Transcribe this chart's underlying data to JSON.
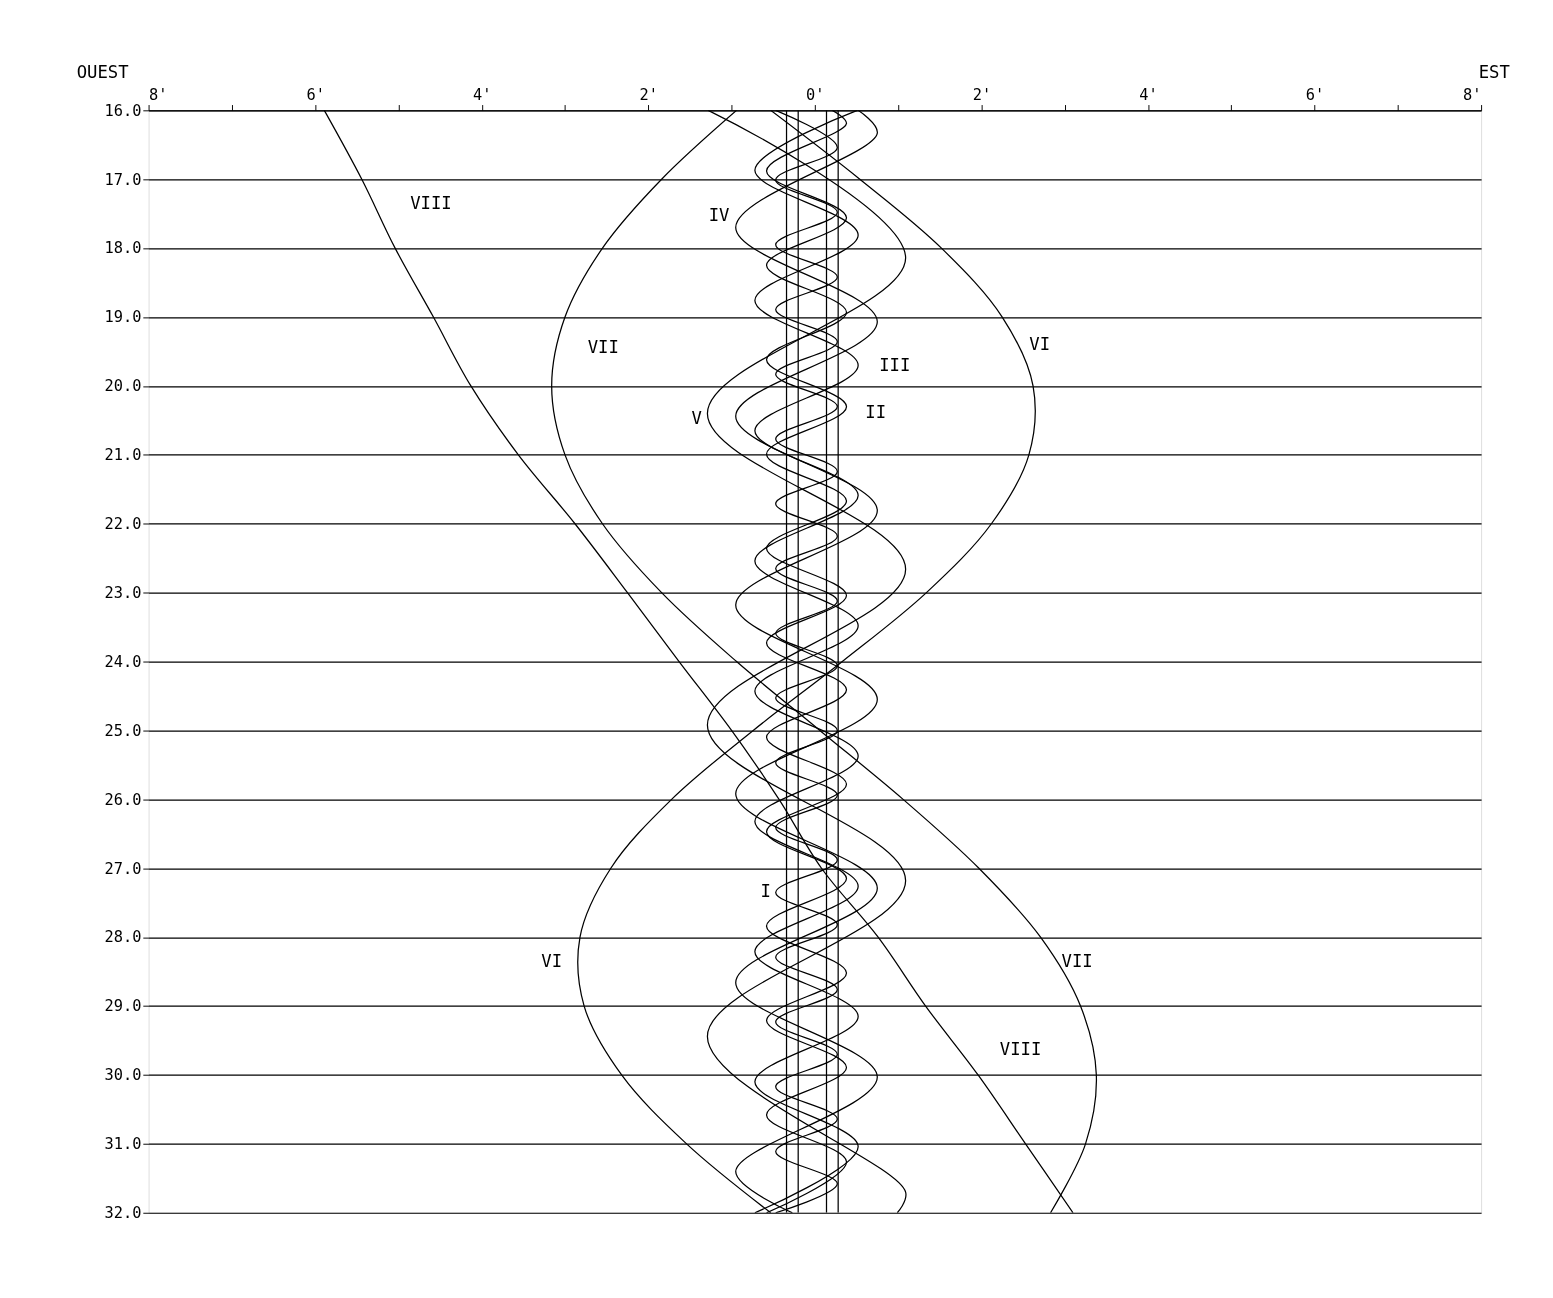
{
  "chart_data": {
    "type": "line",
    "annotations": [
      "OUEST",
      "EST",
      {
        "text": "VIII",
        "x": -5.44,
        "y": 17
      },
      {
        "text": "IV",
        "x": -0.95,
        "y": 17.7
      },
      {
        "text": "VII",
        "x": -3.0,
        "y": 19
      },
      {
        "text": "VI",
        "x": 2.62,
        "y": 20
      },
      {
        "text": "III",
        "x": 0.52,
        "y": 19.7
      },
      {
        "text": "II",
        "x": 0.38,
        "y": 20.3
      },
      {
        "text": "V",
        "x": -1.29,
        "y": 20.4
      },
      {
        "text": "I",
        "x": -0.47,
        "y": 27.35
      },
      {
        "text": "VI",
        "x": -2.82,
        "y": 28
      },
      {
        "text": "VII",
        "x": 2.71,
        "y": 28
      },
      {
        "text": "VIII",
        "x": 1.96,
        "y": 30
      }
    ],
    "xlim": [
      -8,
      8
    ],
    "xticks": [
      {
        "value": -8,
        "label": "8'"
      },
      {
        "value": -7,
        "label": null
      },
      {
        "value": -6,
        "label": "6'"
      },
      {
        "value": -5,
        "label": null
      },
      {
        "value": -4,
        "label": "4'"
      },
      {
        "value": -3,
        "label": null
      },
      {
        "value": -2,
        "label": "2'"
      },
      {
        "value": -1,
        "label": null
      },
      {
        "value": 0,
        "label": "0'"
      },
      {
        "value": 1,
        "label": null
      },
      {
        "value": 2,
        "label": "2'"
      },
      {
        "value": 3,
        "label": null
      },
      {
        "value": 4,
        "label": "4'"
      },
      {
        "value": 5,
        "label": null
      },
      {
        "value": 6,
        "label": "6'"
      },
      {
        "value": 7,
        "label": null
      },
      {
        "value": 8,
        "label": "8'"
      }
    ],
    "ylim": [
      32,
      16
    ],
    "yticks": [
      {
        "value": 16,
        "label": "16.0"
      },
      {
        "value": 17,
        "label": "17.0"
      },
      {
        "value": 18,
        "label": "18.0"
      },
      {
        "value": 19,
        "label": "19.0"
      },
      {
        "value": 20,
        "label": "20.0"
      },
      {
        "value": 21,
        "label": "21.0"
      },
      {
        "value": 22,
        "label": "22.0"
      },
      {
        "value": 23,
        "label": "23.0"
      },
      {
        "value": 24,
        "label": "24.0"
      },
      {
        "value": 25,
        "label": "25.0"
      },
      {
        "value": 26,
        "label": "26.0"
      },
      {
        "value": 27,
        "label": "27.0"
      },
      {
        "value": 28,
        "label": "28.0"
      },
      {
        "value": 29,
        "label": "29.0"
      },
      {
        "value": 30,
        "label": "30.0"
      },
      {
        "value": 31,
        "label": "31.0"
      },
      {
        "value": 32,
        "label": "32.0"
      }
    ],
    "grid": "y",
    "legend": false,
    "marker": "none",
    "line_style": "solid",
    "series": [
      {
        "color": "#000000",
        "x": [
          -0.47,
          0.27,
          -0.47,
          0.27,
          -0.47,
          0.27,
          -0.47,
          0.27,
          -0.47,
          0.27,
          -0.47,
          0.27,
          -0.47,
          0.27,
          -0.47,
          0.27,
          -0.47,
          0.27,
          -0.47,
          0.27,
          -0.47,
          0.27,
          -0.47,
          0.27,
          -0.47,
          0.27,
          -0.47,
          0.27,
          -0.47,
          0.27,
          -0.47,
          0.27,
          -0.47,
          0.27,
          -0.47
        ],
        "values": [
          16.0,
          16.54,
          17.01,
          17.48,
          17.95,
          18.42,
          18.89,
          19.36,
          19.83,
          20.3,
          20.77,
          21.24,
          21.71,
          22.18,
          22.65,
          23.12,
          23.59,
          24.06,
          24.53,
          25.0,
          25.47,
          25.94,
          26.41,
          26.88,
          27.35,
          27.82,
          28.29,
          28.76,
          29.23,
          29.7,
          30.17,
          30.64,
          31.11,
          31.58,
          32.0
        ]
      },
      {
        "color": "#000000",
        "x": [
          0.21,
          0.38,
          -0.58,
          0.38,
          -0.58,
          0.38,
          -0.58,
          0.38,
          -0.58,
          0.38,
          -0.58,
          0.38,
          -0.58,
          0.38,
          -0.58,
          0.38,
          -0.58,
          0.38,
          -0.58,
          0.38,
          -0.58,
          0.38,
          -0.58,
          0.38,
          -0.58
        ],
        "values": [
          16.0,
          16.19,
          16.88,
          17.56,
          18.25,
          18.93,
          19.62,
          20.3,
          20.99,
          21.67,
          22.36,
          23.04,
          23.73,
          24.41,
          25.1,
          25.78,
          26.47,
          27.15,
          27.84,
          28.52,
          29.21,
          29.89,
          30.58,
          31.26,
          32.0
        ]
      },
      {
        "color": "#000000",
        "x": [
          0.51,
          -0.72,
          0.52,
          -0.72,
          0.52,
          -0.72,
          0.52,
          -0.72,
          0.52,
          -0.72,
          0.52,
          -0.72,
          0.52,
          -0.72,
          0.52,
          -0.72,
          0.52,
          -0.72
        ],
        "values": [
          16.0,
          16.87,
          17.81,
          18.76,
          19.7,
          20.65,
          21.59,
          22.54,
          23.48,
          24.43,
          25.37,
          26.32,
          27.26,
          28.21,
          29.15,
          30.1,
          31.04,
          32.0
        ]
      },
      {
        "color": "#000000",
        "x": [
          0.52,
          0.75,
          -0.95,
          0.75,
          -0.95,
          0.75,
          -0.95,
          0.75,
          -0.95,
          0.75,
          -0.95,
          0.75,
          -0.95,
          -0.27
        ],
        "values": [
          16.0,
          16.33,
          17.7,
          19.07,
          20.44,
          21.81,
          23.18,
          24.55,
          25.92,
          27.29,
          28.66,
          30.03,
          31.4,
          32.0
        ]
      },
      {
        "color": "#000000",
        "x": [
          -1.28,
          1.09,
          -1.29,
          1.09,
          -1.29,
          1.09,
          -1.29,
          1.09,
          0.99
        ],
        "values": [
          16.0,
          18.14,
          20.4,
          22.66,
          24.92,
          27.18,
          29.44,
          31.7,
          32.0
        ]
      },
      {
        "color": "#000000",
        "x": [
          -0.53,
          0.54,
          1.52,
          2.25,
          2.62,
          2.57,
          2.12,
          1.34,
          0.33,
          -0.74,
          -1.72,
          -2.45,
          -2.82,
          -2.77,
          -2.32,
          -1.54,
          -0.53
        ],
        "values": [
          16,
          17,
          18,
          19,
          20,
          21,
          22,
          23,
          24,
          25,
          26,
          27,
          28,
          29,
          30,
          31,
          32
        ]
      },
      {
        "color": "#000000",
        "x": [
          -0.94,
          -1.84,
          -2.55,
          -3.0,
          -3.16,
          -3.0,
          -2.55,
          -1.84,
          -0.94,
          0.06,
          1.06,
          1.97,
          2.71,
          3.19,
          3.38,
          3.25,
          2.83
        ],
        "values": [
          16,
          17,
          18,
          19,
          20,
          21,
          22,
          23,
          24,
          25,
          26,
          27,
          28,
          29,
          30,
          31,
          32
        ]
      },
      {
        "color": "#000000",
        "x": [
          -5.89,
          -5.44,
          -5.04,
          -4.58,
          -4.13,
          -3.56,
          -2.88,
          -2.25,
          -1.63,
          -1.0,
          -0.43,
          0.08,
          0.76,
          1.33,
          1.96,
          2.53,
          3.1
        ],
        "values": [
          16,
          17,
          18,
          19,
          20,
          21,
          22,
          23,
          24,
          25,
          26,
          27,
          28,
          29,
          30,
          31,
          32
        ]
      },
      {
        "color": "#000000",
        "x": [
          -0.34,
          -0.34
        ],
        "values": [
          16,
          32
        ]
      },
      {
        "color": "#000000",
        "x": [
          -0.2,
          -0.2
        ],
        "values": [
          16,
          32
        ]
      },
      {
        "color": "#000000",
        "x": [
          0.14,
          0.14
        ],
        "values": [
          16,
          32
        ]
      },
      {
        "color": "#000000",
        "x": [
          0.28,
          0.28
        ],
        "values": [
          16,
          32
        ]
      }
    ]
  }
}
